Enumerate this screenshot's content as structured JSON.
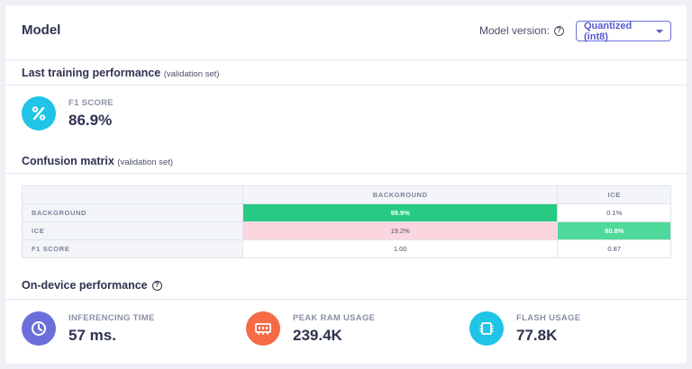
{
  "header": {
    "title": "Model",
    "version_label": "Model version:",
    "version_selected": "Quantized (int8)"
  },
  "training": {
    "title": "Last training performance",
    "subtitle": "(validation set)",
    "f1_label": "F1 SCORE",
    "f1_value": "86.9%"
  },
  "confusion": {
    "title": "Confusion matrix",
    "subtitle": "(validation set)",
    "columns": [
      "BACKGROUND",
      "ICE"
    ],
    "rows": [
      {
        "label": "BACKGROUND",
        "cells": [
          "99.9%",
          "0.1%"
        ]
      },
      {
        "label": "ICE",
        "cells": [
          "19.2%",
          "80.8%"
        ]
      },
      {
        "label": "F1 SCORE",
        "cells": [
          "1.00",
          "0.87"
        ]
      }
    ],
    "colors": {
      "strong_green": "#27c983",
      "light_green": "#4fd99a",
      "pink": "#fbd6de"
    }
  },
  "device": {
    "title": "On-device performance",
    "inferencing_label": "INFERENCING TIME",
    "inferencing_value": "57 ms.",
    "ram_label": "PEAK RAM USAGE",
    "ram_value": "239.4K",
    "flash_label": "FLASH USAGE",
    "flash_value": "77.8K"
  },
  "colors": {
    "cyan": "#1fc4e6",
    "indigo": "#6c6fd9",
    "orange": "#f46b45"
  },
  "icons": {
    "f1": "percent-icon",
    "inferencing": "clock-icon",
    "ram": "memory-icon",
    "flash": "chip-icon",
    "help": "help-icon"
  }
}
